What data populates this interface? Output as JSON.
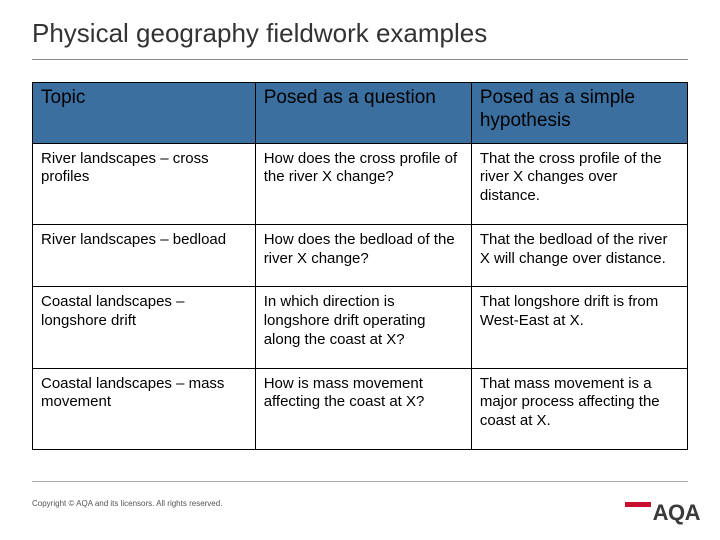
{
  "title": "Physical geography fieldwork examples",
  "table": {
    "columns": [
      "Topic",
      "Posed as a question",
      "Posed as a simple hypothesis"
    ],
    "header_bg": "#3b6fa0",
    "header_fontsize": 19,
    "cell_fontsize": 15,
    "border_color": "#000000",
    "col_widths_pct": [
      34,
      33,
      33
    ],
    "rows": [
      {
        "topic": "River landscapes – cross profiles",
        "question": "How does the cross profile of the river X change?",
        "hypothesis": "That the cross profile of the river X changes over distance."
      },
      {
        "topic": "River landscapes – bedload",
        "question": "How does the bedload of the river X change?",
        "hypothesis": "That the bedload of the river X will change over distance."
      },
      {
        "topic": "Coastal landscapes – longshore drift",
        "question": "In which direction is longshore drift operating along the coast at X?",
        "hypothesis": "That longshore drift is from West-East at X."
      },
      {
        "topic": "Coastal landscapes – mass movement",
        "question": "How is mass movement affecting the coast at X?",
        "hypothesis": "That mass movement is a major process affecting the coast at X."
      }
    ]
  },
  "copyright": "Copyright © AQA and its licensors. All rights reserved.",
  "logo_text": "AQA",
  "logo_accent_color": "#c8102e",
  "background_color": "#ffffff"
}
